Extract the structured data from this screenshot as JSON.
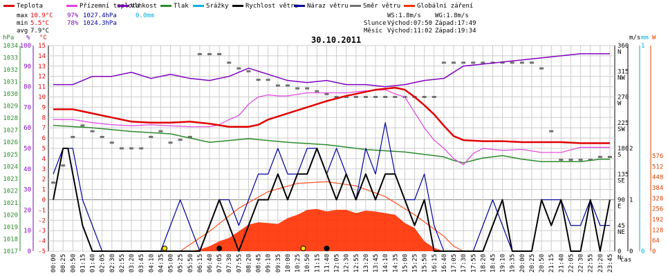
{
  "chart_data": {
    "type": "line",
    "title": "30.10.2011",
    "legend": [
      {
        "name": "Teplota",
        "color": "#e00000"
      },
      {
        "name": "Přízemní teplota",
        "color": "#e040e0"
      },
      {
        "name": "Vlhkost",
        "color": "#8000c0"
      },
      {
        "name": "Tlak",
        "color": "#2a8a2a"
      },
      {
        "name": "Srážky",
        "color": "#00b0e0"
      },
      {
        "name": "Rychlost větru",
        "color": "#000000"
      },
      {
        "name": "Náraz větru",
        "color": "#0000a0"
      },
      {
        "name": "Směr větru",
        "color": "#707070"
      },
      {
        "name": "Globální záření",
        "color": "#ff3000"
      }
    ],
    "stats": {
      "max_label": "max",
      "max_temp": "10.9°C",
      "max_hum": "97%",
      "max_press": "1027.4hPa",
      "max_rain": "0.0mm",
      "min_label": "min",
      "min_temp": "5.5°C",
      "min_hum": "78%",
      "min_press": "1024.3hPa",
      "avg_label": "avg",
      "avg_temp": "7.9°C"
    },
    "info": {
      "ws": "WS:1.8m/s",
      "wg": "WG:1.8m/s",
      "sun_label": "Slunce",
      "sun_rise": "Východ:07:50",
      "sun_set": "Západ:17:49",
      "moon_label": "Měsíc",
      "moon_rise": "Východ:11:02",
      "moon_set": "Západ:19:34"
    },
    "axes": {
      "hpa_title": "hPa",
      "pct_title": "%",
      "c_title": "°C",
      "hpa_ticks": [
        1017,
        1018,
        1019,
        1020,
        1021,
        1022,
        1023,
        1024,
        1025,
        1026,
        1027,
        1028,
        1029,
        1030,
        1031,
        1032,
        1033,
        1034
      ],
      "pct_ticks": [
        0,
        10,
        20,
        30,
        40,
        50,
        60,
        70,
        80,
        90,
        100
      ],
      "c_ticks": [
        -5,
        -4,
        -3,
        -2,
        -1,
        0,
        1,
        2,
        3,
        4,
        5,
        6,
        7,
        8,
        9,
        10,
        11,
        12,
        13,
        14,
        15
      ],
      "dir_title": "m/s",
      "mm_title": "mm",
      "w_title": "W",
      "dir_ticks": [
        {
          "v": 0,
          "t": "0",
          "d": "N"
        },
        {
          "v": 45,
          "t": "45",
          "d": "NE"
        },
        {
          "v": 90,
          "t": "90",
          "d": "E"
        },
        {
          "v": 135,
          "t": "135",
          "d": "SE"
        },
        {
          "v": 180,
          "t": "180",
          "d": "S"
        },
        {
          "v": 225,
          "t": "225",
          "d": "SW"
        },
        {
          "v": 270,
          "t": "270",
          "d": "W"
        },
        {
          "v": 315,
          "t": "315",
          "d": "NW"
        },
        {
          "v": 360,
          "t": "360",
          "d": "N"
        }
      ],
      "ms_ticks": [
        0,
        1,
        2
      ],
      "mm_ticks": [
        0,
        1
      ],
      "w_ticks": [
        0,
        64,
        128,
        192,
        256,
        320,
        384,
        448,
        512,
        576
      ],
      "x_unit": "čas",
      "x_ticks": [
        "00:00",
        "00:25",
        "00:50",
        "01:15",
        "01:40",
        "02:05",
        "02:30",
        "02:55",
        "03:20",
        "03:45",
        "04:10",
        "04:35",
        "05:00",
        "05:25",
        "05:50",
        "06:15",
        "06:40",
        "07:05",
        "07:30",
        "07:55",
        "08:20",
        "08:45",
        "09:10",
        "09:35",
        "10:00",
        "10:25",
        "10:50",
        "11:15",
        "11:40",
        "12:05",
        "12:30",
        "12:55",
        "13:20",
        "13:45",
        "14:10",
        "14:35",
        "15:00",
        "15:25",
        "15:50",
        "16:15",
        "16:40",
        "17:05",
        "17:30",
        "17:55",
        "18:20",
        "18:45",
        "19:10",
        "19:35",
        "20:00",
        "20:25",
        "20:50",
        "21:15",
        "21:40",
        "22:05",
        "22:30",
        "22:55",
        "23:20",
        "23:45"
      ]
    },
    "series": {
      "temperature": {
        "x": [
          0,
          2,
          4,
          6,
          8,
          10,
          12,
          14,
          16,
          18,
          20,
          21,
          22,
          24,
          26,
          28,
          30,
          32,
          33,
          34,
          35,
          36,
          37,
          38,
          39,
          40,
          41,
          42,
          44,
          46,
          48,
          50,
          52,
          54,
          56,
          57
        ],
        "y": [
          8.8,
          8.8,
          8.4,
          8.0,
          7.6,
          7.5,
          7.5,
          7.6,
          7.4,
          7.1,
          7.1,
          7.3,
          7.8,
          8.4,
          9.0,
          9.6,
          10.1,
          10.5,
          10.7,
          10.8,
          10.9,
          10.7,
          10.0,
          9.2,
          8.3,
          7.2,
          6.2,
          5.8,
          5.7,
          5.7,
          5.6,
          5.6,
          5.6,
          5.5,
          5.5,
          5.5
        ]
      },
      "ground_temperature": {
        "x": [
          0,
          2,
          4,
          6,
          8,
          10,
          12,
          14,
          16,
          17,
          18,
          19,
          20,
          21,
          22,
          23,
          24,
          26,
          28,
          30,
          32,
          34,
          35,
          36,
          37,
          38,
          39,
          40,
          41,
          42,
          43,
          44,
          46,
          48,
          50,
          52,
          54,
          57
        ],
        "y": [
          7.8,
          7.8,
          7.5,
          7.3,
          7.2,
          7.3,
          7.2,
          7.1,
          7.1,
          7.3,
          7.8,
          8.2,
          9.3,
          10.0,
          10.2,
          10.1,
          10.1,
          10.4,
          10.4,
          10.4,
          10.6,
          10.7,
          10.3,
          10.0,
          8.5,
          7.0,
          5.8,
          5.0,
          4.0,
          3.4,
          4.5,
          5.0,
          4.8,
          4.9,
          4.6,
          4.6,
          5.1,
          5.1
        ]
      },
      "humidity": {
        "x": [
          0,
          2,
          4,
          6,
          8,
          10,
          12,
          14,
          16,
          18,
          20,
          22,
          24,
          26,
          28,
          30,
          32,
          34,
          36,
          37,
          38,
          40,
          42,
          44,
          46,
          48,
          50,
          52,
          54,
          57
        ],
        "y": [
          81,
          81,
          85,
          85,
          87,
          84,
          86,
          84,
          83,
          85,
          89,
          86,
          83,
          82,
          83,
          81,
          81,
          80,
          81,
          82,
          83,
          84,
          90,
          91,
          92,
          93,
          94,
          95,
          96,
          96
        ]
      },
      "pressure": {
        "x": [
          0,
          4,
          8,
          12,
          16,
          20,
          24,
          28,
          32,
          36,
          38,
          40,
          41,
          42,
          44,
          46,
          48,
          50,
          52,
          54,
          56,
          57
        ],
        "y": [
          1027.4,
          1027.2,
          1026.9,
          1026.7,
          1026.0,
          1026.3,
          1026.0,
          1025.8,
          1025.4,
          1025.2,
          1025.0,
          1024.8,
          1024.5,
          1024.3,
          1024.7,
          1024.9,
          1024.6,
          1024.4,
          1024.4,
          1024.4,
          1024.6,
          1024.6
        ]
      },
      "wind_speed": {
        "x": [
          0,
          1,
          1.5,
          2,
          3,
          4,
          5,
          6,
          7,
          8,
          9,
          10,
          11,
          12,
          13,
          14,
          15,
          16,
          17,
          18,
          19,
          20,
          21,
          22,
          23,
          24,
          25,
          26,
          27,
          28,
          29,
          30,
          31,
          32,
          33,
          34,
          35,
          36,
          37,
          38,
          39,
          40,
          41,
          42,
          43,
          44,
          45,
          46,
          47,
          48,
          49,
          50,
          51,
          52,
          53,
          54,
          55,
          56,
          57
        ],
        "y": [
          1.0,
          2.0,
          2.0,
          1.5,
          0.5,
          0,
          0,
          0,
          0,
          0,
          0,
          0,
          0,
          0,
          0,
          0,
          0,
          0.5,
          1.0,
          0.5,
          0,
          0.5,
          1.0,
          1.0,
          1.5,
          1.0,
          1.5,
          1.5,
          2.0,
          1.5,
          1.0,
          1.5,
          1.0,
          1.5,
          1.0,
          1.5,
          1.5,
          1.0,
          0.5,
          1.0,
          0,
          0,
          0,
          0,
          0,
          0,
          0.5,
          1.0,
          0,
          0,
          0,
          1.0,
          0.5,
          1.0,
          0,
          0,
          1.0,
          0,
          1.0
        ]
      },
      "wind_gust": {
        "x": [
          0,
          1,
          2,
          3,
          4,
          5,
          6,
          7,
          8,
          9,
          10,
          11,
          12,
          13,
          14,
          15,
          16,
          17,
          18,
          19,
          20,
          21,
          22,
          23,
          24,
          25,
          26,
          27,
          28,
          29,
          30,
          31,
          32,
          33,
          34,
          35,
          36,
          37,
          38,
          39,
          40,
          41,
          42,
          43,
          44,
          45,
          46,
          47,
          48,
          49,
          50,
          51,
          52,
          53,
          54,
          55,
          56,
          57
        ],
        "y": [
          1.5,
          2.0,
          2.0,
          1.0,
          0.5,
          0,
          0,
          0,
          0,
          0,
          0,
          0,
          0.5,
          1.0,
          0.5,
          0,
          0.5,
          1.0,
          1.0,
          0.5,
          1.0,
          1.5,
          1.5,
          2.0,
          1.5,
          1.5,
          2.0,
          2.0,
          1.5,
          2.0,
          1.5,
          1.0,
          2.0,
          1.5,
          2.5,
          1.5,
          1.0,
          1.0,
          1.5,
          0.5,
          0,
          0,
          0,
          0,
          0.5,
          1.0,
          0.5,
          0,
          0,
          0,
          1.0,
          1.0,
          1.0,
          0.5,
          0.5,
          1.0,
          0.5,
          0.5
        ]
      },
      "wind_dir": {
        "x": [
          0,
          1,
          2,
          3,
          4,
          5,
          6,
          7,
          8,
          9,
          10,
          11,
          12,
          13,
          14,
          15,
          16,
          17,
          18,
          19,
          20,
          21,
          22,
          23,
          24,
          25,
          26,
          27,
          28,
          29,
          30,
          31,
          32,
          33,
          34,
          35,
          36,
          37,
          38,
          39,
          40,
          41,
          42,
          43,
          44,
          45,
          46,
          47,
          48,
          49,
          50,
          51,
          52,
          53,
          54,
          55,
          56,
          57
        ],
        "y": [
          120,
          150,
          200,
          220,
          210,
          200,
          190,
          180,
          180,
          180,
          200,
          210,
          190,
          195,
          200,
          345,
          345,
          345,
          330,
          320,
          315,
          300,
          300,
          290,
          290,
          285,
          285,
          280,
          275,
          270,
          270,
          270,
          270,
          270,
          270,
          270,
          270,
          270,
          270,
          270,
          330,
          330,
          330,
          330,
          330,
          330,
          330,
          330,
          330,
          330,
          320,
          210,
          160,
          160,
          160,
          160,
          165,
          165
        ]
      },
      "radiation": {
        "x": [
          0,
          14,
          15,
          16,
          17,
          18,
          19,
          20,
          21,
          22,
          23,
          24,
          25,
          26,
          27,
          28,
          29,
          30,
          31,
          32,
          33,
          34,
          35,
          36,
          37,
          38,
          39,
          40,
          57
        ],
        "y": [
          0,
          0,
          10,
          30,
          60,
          80,
          120,
          160,
          175,
          170,
          165,
          200,
          220,
          250,
          255,
          240,
          250,
          250,
          230,
          245,
          240,
          230,
          220,
          170,
          140,
          60,
          20,
          0,
          0
        ]
      },
      "clear_sky_radiation": {
        "x": [
          13,
          16,
          19,
          22,
          25,
          28,
          31,
          34,
          37,
          40,
          41,
          42
        ],
        "y": [
          0,
          120,
          260,
          360,
          410,
          420,
          395,
          330,
          220,
          90,
          30,
          0
        ]
      }
    },
    "markers": [
      {
        "x": 11.4,
        "type": "sunrise",
        "color": "#ffe000"
      },
      {
        "x": 17.0,
        "type": "moonrise",
        "color": "#000000"
      },
      {
        "x": 25.6,
        "type": "sunset",
        "color": "#ffe000"
      },
      {
        "x": 28.0,
        "type": "moonset",
        "color": "#000000"
      }
    ]
  }
}
